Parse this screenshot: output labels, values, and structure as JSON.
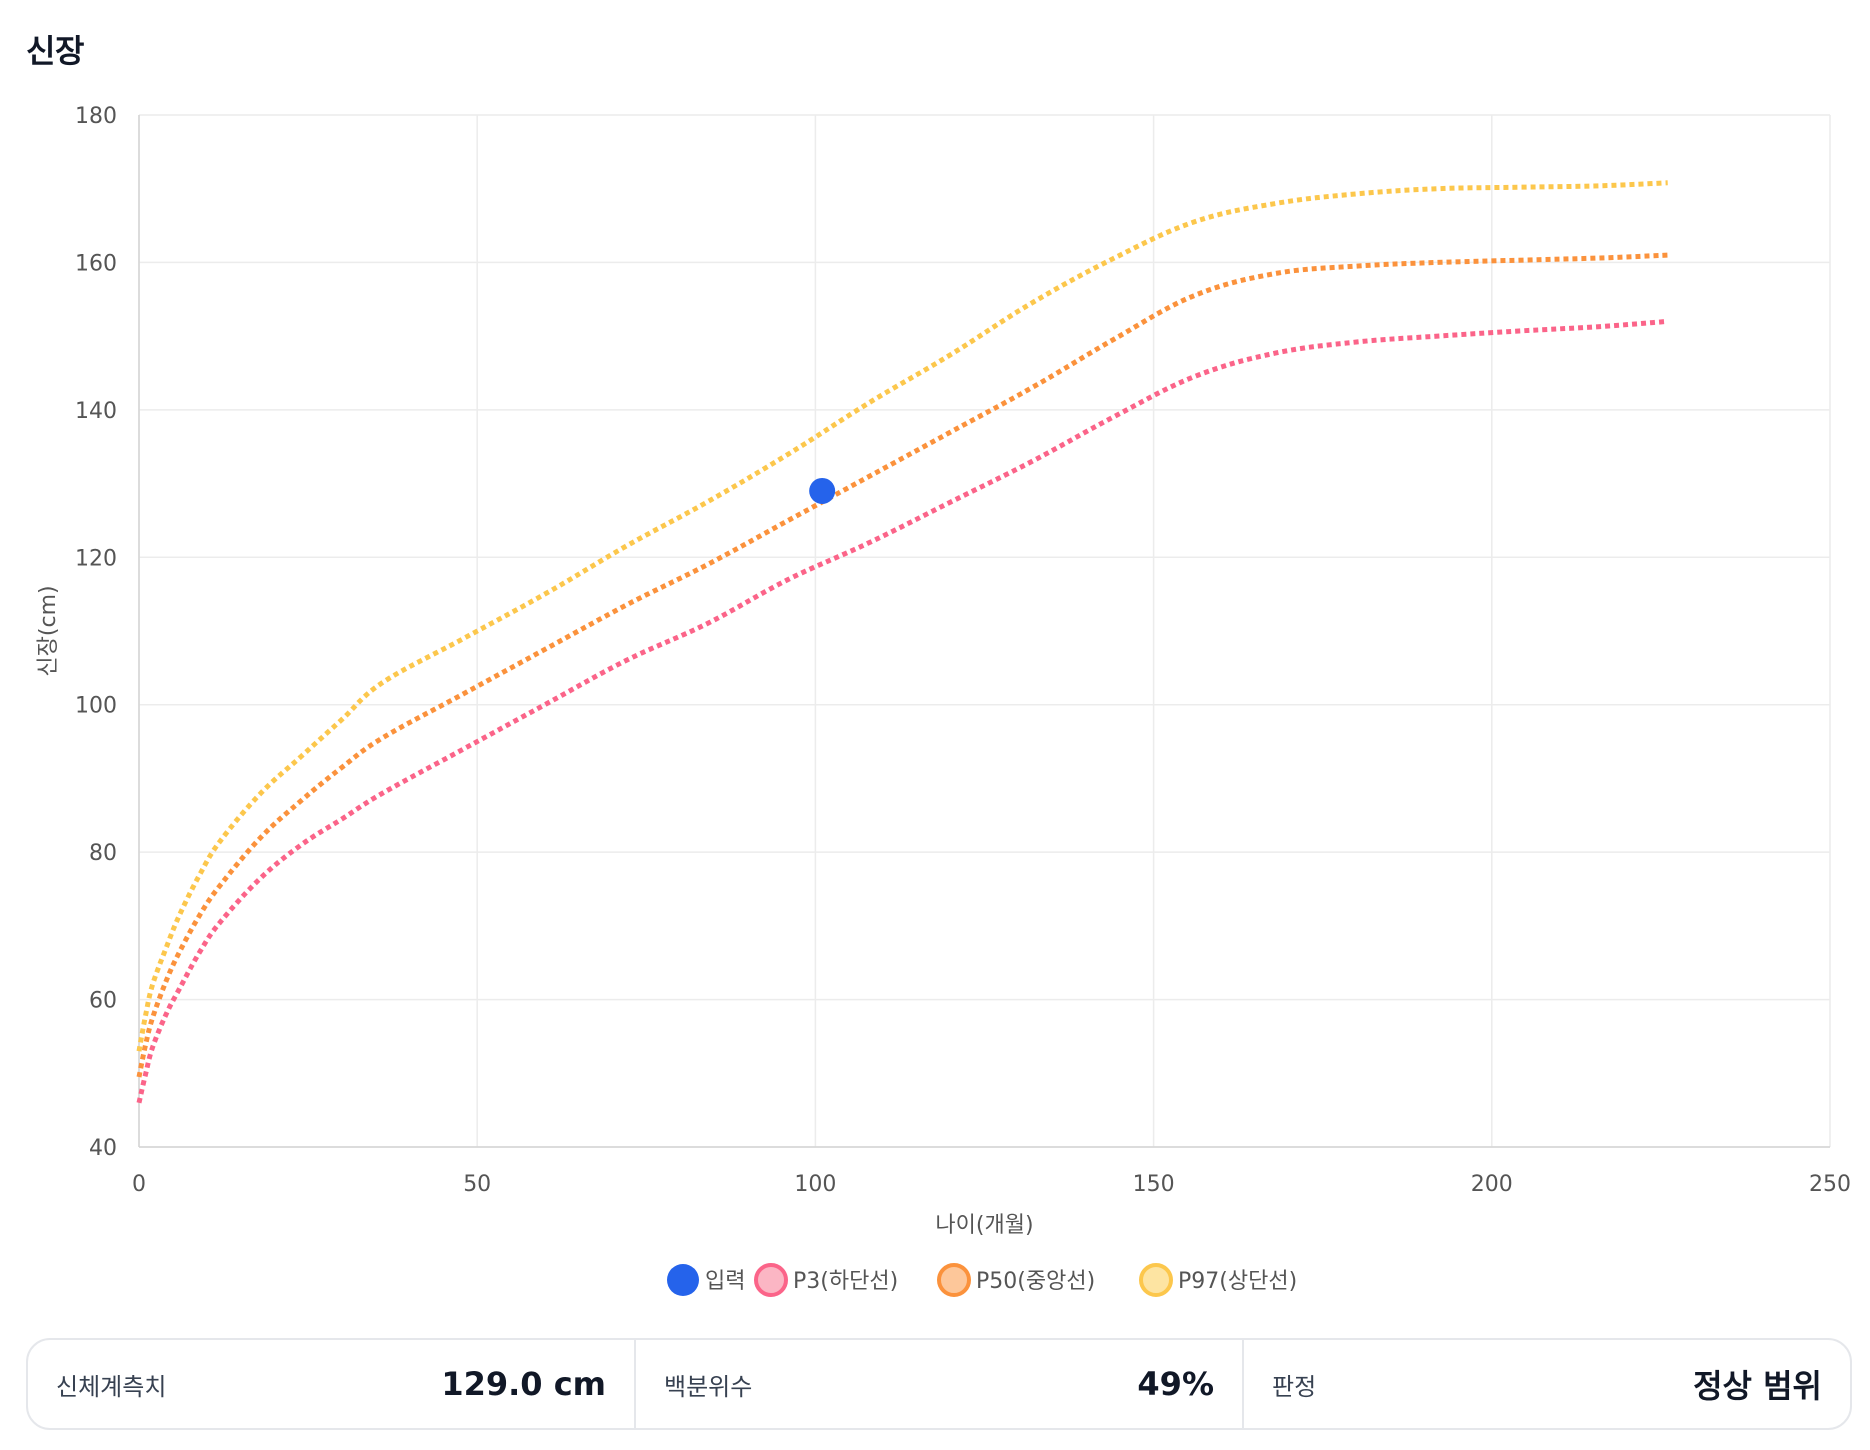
{
  "header": {
    "title": "신장"
  },
  "chart_data": {
    "type": "line",
    "xlabel": "나이(개월)",
    "ylabel": "신장(cm)",
    "xlim": [
      0,
      250
    ],
    "ylim": [
      40,
      180
    ],
    "x_ticks": [
      0,
      50,
      100,
      150,
      200,
      250
    ],
    "y_ticks": [
      40,
      60,
      80,
      100,
      120,
      140,
      160,
      180
    ],
    "grid": true,
    "legend_position": "bottom",
    "point_series": {
      "name": "입력",
      "color": "#2563eb",
      "points": [
        {
          "x": 101,
          "y": 129
        }
      ]
    },
    "series": [
      {
        "name": "P3(하단선)",
        "color": "#fb6489",
        "fill": "#fbb6c4",
        "points": [
          [
            0,
            46
          ],
          [
            1,
            50
          ],
          [
            2,
            53.5
          ],
          [
            4,
            58
          ],
          [
            6,
            61.5
          ],
          [
            9,
            66.5
          ],
          [
            12,
            70.5
          ],
          [
            18,
            76.5
          ],
          [
            24,
            81
          ],
          [
            30,
            84.5
          ],
          [
            36,
            88
          ],
          [
            48,
            94
          ],
          [
            60,
            100
          ],
          [
            72,
            106
          ],
          [
            84,
            111
          ],
          [
            96,
            117
          ],
          [
            108,
            122
          ],
          [
            120,
            127.5
          ],
          [
            132,
            133
          ],
          [
            144,
            139
          ],
          [
            156,
            144.5
          ],
          [
            168,
            147.7
          ],
          [
            180,
            149.2
          ],
          [
            192,
            150
          ],
          [
            204,
            150.7
          ],
          [
            216,
            151.3
          ],
          [
            226,
            152
          ]
        ]
      },
      {
        "name": "P50(중앙선)",
        "color": "#fb923c",
        "fill": "#fdc79a",
        "points": [
          [
            0,
            49.5
          ],
          [
            1,
            54
          ],
          [
            2,
            57.5
          ],
          [
            4,
            62.5
          ],
          [
            6,
            66.5
          ],
          [
            9,
            71.5
          ],
          [
            12,
            75.5
          ],
          [
            18,
            82
          ],
          [
            24,
            87
          ],
          [
            30,
            91.5
          ],
          [
            36,
            95.5
          ],
          [
            48,
            101.5
          ],
          [
            60,
            107.5
          ],
          [
            72,
            113.5
          ],
          [
            84,
            119
          ],
          [
            96,
            125
          ],
          [
            108,
            131
          ],
          [
            120,
            137
          ],
          [
            132,
            143
          ],
          [
            144,
            149.5
          ],
          [
            156,
            155.5
          ],
          [
            168,
            158.5
          ],
          [
            180,
            159.5
          ],
          [
            192,
            160
          ],
          [
            204,
            160.3
          ],
          [
            216,
            160.6
          ],
          [
            226,
            161
          ]
        ]
      },
      {
        "name": "P97(상단선)",
        "color": "#fcc74c",
        "fill": "#fde4a2",
        "points": [
          [
            0,
            53
          ],
          [
            1,
            58
          ],
          [
            2,
            62
          ],
          [
            4,
            67
          ],
          [
            6,
            71.5
          ],
          [
            9,
            77
          ],
          [
            12,
            81.5
          ],
          [
            18,
            88
          ],
          [
            24,
            93
          ],
          [
            30,
            98
          ],
          [
            36,
            103
          ],
          [
            48,
            109
          ],
          [
            60,
            115
          ],
          [
            72,
            121.5
          ],
          [
            84,
            127.5
          ],
          [
            96,
            134
          ],
          [
            108,
            141
          ],
          [
            120,
            147.5
          ],
          [
            132,
            154.5
          ],
          [
            144,
            160.5
          ],
          [
            156,
            165.5
          ],
          [
            168,
            168
          ],
          [
            180,
            169.3
          ],
          [
            192,
            170
          ],
          [
            204,
            170.2
          ],
          [
            216,
            170.4
          ],
          [
            226,
            170.8
          ]
        ]
      }
    ]
  },
  "summary": {
    "measure_label": "신체계측치",
    "measure_value": "129.0 cm",
    "percentile_label": "백분위수",
    "percentile_value": "49%",
    "judgement_label": "판정",
    "judgement_value": "정상 범위"
  }
}
